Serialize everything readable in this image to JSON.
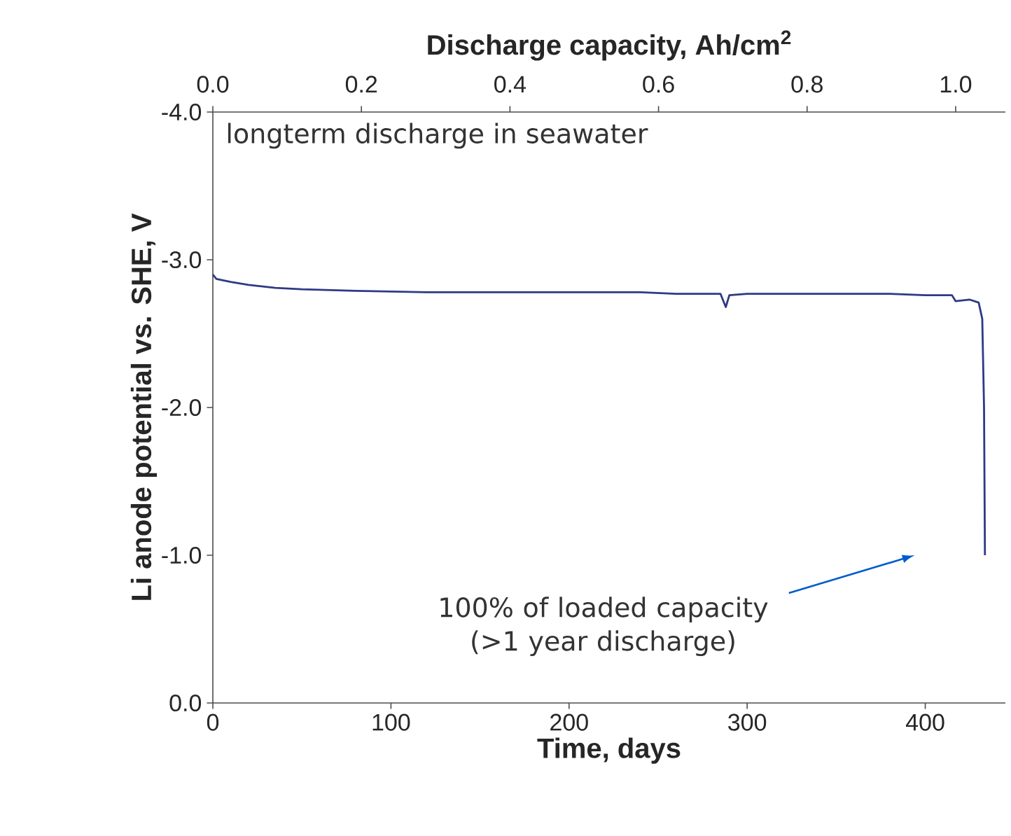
{
  "chart_data": {
    "type": "line",
    "xlabel": "Time, days",
    "ylabel": "Li anode potential vs. SHE, V",
    "x2label": "Discharge capacity, Ah/cm$^{2}$",
    "x": [
      0,
      2,
      10,
      20,
      35,
      50,
      80,
      120,
      160,
      200,
      240,
      260,
      285,
      288,
      290,
      300,
      340,
      380,
      400,
      415,
      417,
      425,
      430,
      432,
      433,
      433.5
    ],
    "series": [
      {
        "color": "#2e3a87",
        "values": [
          -2.9,
          -2.87,
          -2.85,
          -2.83,
          -2.81,
          -2.8,
          -2.79,
          -2.78,
          -2.78,
          -2.78,
          -2.78,
          -2.77,
          -2.77,
          -2.68,
          -2.76,
          -2.77,
          -2.77,
          -2.77,
          -2.76,
          -2.76,
          -2.72,
          -2.73,
          -2.71,
          -2.6,
          -2.0,
          -1.0
        ]
      }
    ],
    "xlim": [
      0,
      445
    ],
    "xticks": [
      0,
      100,
      200,
      300,
      400
    ],
    "x2lim": [
      0,
      1.067
    ],
    "x2ticks": [
      {
        "value": 0,
        "label": "0.0"
      },
      {
        "value": 0.2,
        "label": "0.2"
      },
      {
        "value": 0.4,
        "label": "0.4"
      },
      {
        "value": 0.6,
        "label": "0.6"
      },
      {
        "value": 0.8,
        "label": "0.8"
      },
      {
        "value": 1.0,
        "label": "1.0"
      }
    ],
    "ylim": [
      0,
      -4
    ],
    "yticks": [
      {
        "value": -4,
        "label": "-4.0"
      },
      {
        "value": -3,
        "label": "-3.0"
      },
      {
        "value": -2,
        "label": "-2.0"
      },
      {
        "value": -1,
        "label": "-1.0"
      },
      {
        "value": 0,
        "label": "0.0"
      }
    ],
    "annotations": [
      "longterm discharge in seawater",
      "100% of loaded capacity (>1 year discharge)"
    ],
    "grid": false,
    "marker": "none",
    "line_style": "solid"
  }
}
